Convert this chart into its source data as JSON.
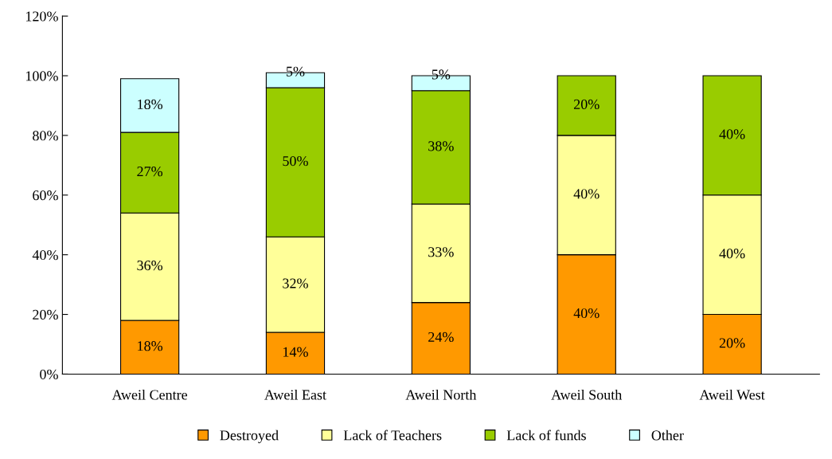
{
  "chart_data": {
    "type": "bar",
    "stacked": true,
    "categories": [
      "Aweil Centre",
      "Aweil East",
      "Aweil North",
      "Aweil South",
      "Aweil West"
    ],
    "series": [
      {
        "name": "Destroyed",
        "color": "#ff9900",
        "values": [
          18,
          14,
          24,
          40,
          20
        ],
        "value_labels": [
          "18%",
          "14%",
          "24%",
          "40%",
          "20%"
        ]
      },
      {
        "name": "Lack of Teachers",
        "color": "#ffff99",
        "values": [
          36,
          32,
          33,
          40,
          40
        ],
        "value_labels": [
          "36%",
          "32%",
          "33%",
          "40%",
          "40%"
        ]
      },
      {
        "name": "Lack of funds",
        "color": "#99cc00",
        "values": [
          27,
          50,
          38,
          20,
          40
        ],
        "value_labels": [
          "27%",
          "50%",
          "38%",
          "20%",
          "40%"
        ]
      },
      {
        "name": "Other",
        "color": "#ccffff",
        "values": [
          18,
          5,
          5,
          null,
          null
        ],
        "value_labels": [
          "18%",
          "5%",
          "5%",
          null,
          null
        ]
      }
    ],
    "ylim": [
      0,
      120
    ],
    "yticks": [
      {
        "value": 0,
        "label": "0%"
      },
      {
        "value": 20,
        "label": "20%"
      },
      {
        "value": 40,
        "label": "40%"
      },
      {
        "value": 60,
        "label": "60%"
      },
      {
        "value": 80,
        "label": "80%"
      },
      {
        "value": 100,
        "label": "100%"
      },
      {
        "value": 120,
        "label": "120%"
      }
    ],
    "grid": false,
    "legend": "bottom"
  }
}
